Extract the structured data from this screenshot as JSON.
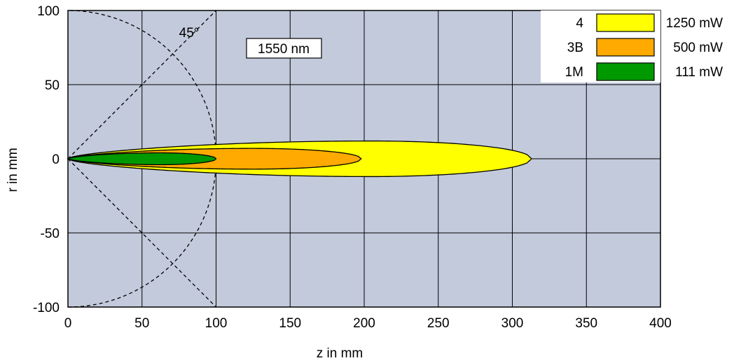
{
  "chart_data": {
    "type": "area",
    "xlabel": "z in mm",
    "ylabel": "r in mm",
    "xlim": [
      0,
      400
    ],
    "ylim": [
      -100,
      100
    ],
    "x_ticks": [
      "0",
      "50",
      "100",
      "150",
      "200",
      "250",
      "300",
      "350",
      "400"
    ],
    "y_ticks": [
      "100",
      "50",
      "0",
      "-50",
      "-100"
    ],
    "grid": true,
    "background_color": "#c3cadb",
    "annotations": {
      "wavelength": "1550 nm",
      "angle": "45°"
    },
    "reference": {
      "circle_radius": 100,
      "diagonal_angle_deg": 45
    },
    "legend_position": "top-right",
    "series": [
      {
        "class": "4",
        "power": "1250 mW",
        "color": "#ffff00",
        "z_max": 313,
        "r_max": 12,
        "z_at_r_max": 205
      },
      {
        "class": "3B",
        "power": "500 mW",
        "color": "#ffaa00",
        "z_max": 198,
        "r_max": 7,
        "z_at_r_max": 125
      },
      {
        "class": "1M",
        "power": "111 mW",
        "color": "#009900",
        "z_max": 100,
        "r_max": 4,
        "z_at_r_max": 62
      }
    ]
  }
}
